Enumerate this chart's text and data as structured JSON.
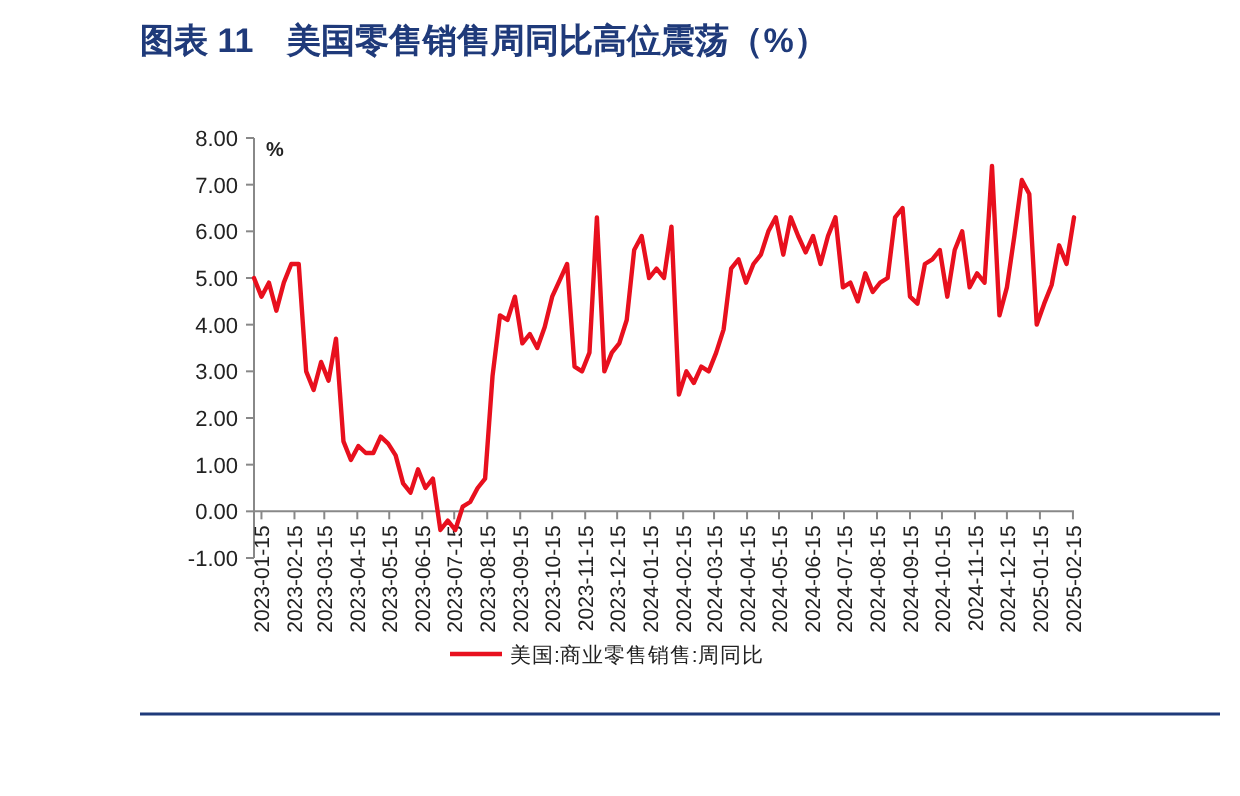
{
  "chart_data": {
    "type": "line",
    "title": "图表 11　美国零售销售周同比高位震荡（%）",
    "ylabel": "%",
    "x": [
      "2023-01-08",
      "2023-01-15",
      "2023-01-22",
      "2023-01-29",
      "2023-02-05",
      "2023-02-12",
      "2023-02-19",
      "2023-02-26",
      "2023-03-05",
      "2023-03-12",
      "2023-03-19",
      "2023-03-26",
      "2023-04-02",
      "2023-04-09",
      "2023-04-16",
      "2023-04-23",
      "2023-04-30",
      "2023-05-07",
      "2023-05-14",
      "2023-05-21",
      "2023-05-28",
      "2023-06-04",
      "2023-06-11",
      "2023-06-18",
      "2023-06-25",
      "2023-07-02",
      "2023-07-09",
      "2023-07-16",
      "2023-07-23",
      "2023-07-30",
      "2023-08-06",
      "2023-08-13",
      "2023-08-20",
      "2023-08-27",
      "2023-09-03",
      "2023-09-10",
      "2023-09-17",
      "2023-09-24",
      "2023-10-01",
      "2023-10-08",
      "2023-10-15",
      "2023-10-22",
      "2023-10-29",
      "2023-11-05",
      "2023-11-12",
      "2023-11-19",
      "2023-11-26",
      "2023-12-03",
      "2023-12-10",
      "2023-12-17",
      "2023-12-24",
      "2023-12-31",
      "2024-01-07",
      "2024-01-14",
      "2024-01-21",
      "2024-01-28",
      "2024-02-04",
      "2024-02-11",
      "2024-02-18",
      "2024-02-25",
      "2024-03-03",
      "2024-03-10",
      "2024-03-17",
      "2024-03-24",
      "2024-03-31",
      "2024-04-07",
      "2024-04-14",
      "2024-04-21",
      "2024-04-28",
      "2024-05-05",
      "2024-05-12",
      "2024-05-19",
      "2024-05-26",
      "2024-06-02",
      "2024-06-09",
      "2024-06-16",
      "2024-06-23",
      "2024-06-30",
      "2024-07-07",
      "2024-07-14",
      "2024-07-21",
      "2024-07-28",
      "2024-08-04",
      "2024-08-11",
      "2024-08-18",
      "2024-08-25",
      "2024-09-01",
      "2024-09-08",
      "2024-09-15",
      "2024-09-22",
      "2024-09-29",
      "2024-10-06",
      "2024-10-13",
      "2024-10-20",
      "2024-10-27",
      "2024-11-03",
      "2024-11-10",
      "2024-11-17",
      "2024-11-24",
      "2024-12-01",
      "2024-12-08",
      "2024-12-15",
      "2024-12-22",
      "2024-12-29",
      "2025-01-05",
      "2025-01-12",
      "2025-01-19",
      "2025-01-26",
      "2025-02-02",
      "2025-02-09",
      "2025-02-16"
    ],
    "series": [
      {
        "name": "美国:商业零售销售:周同比",
        "color": "#e8101e",
        "values": [
          5.0,
          4.6,
          4.9,
          4.3,
          4.9,
          5.3,
          5.3,
          3.0,
          2.6,
          3.2,
          2.8,
          3.7,
          1.5,
          1.1,
          1.4,
          1.25,
          1.25,
          1.6,
          1.45,
          1.2,
          0.6,
          0.4,
          0.9,
          0.5,
          0.7,
          -0.4,
          -0.2,
          -0.4,
          0.1,
          0.2,
          0.5,
          0.7,
          2.9,
          4.2,
          4.1,
          4.6,
          3.6,
          3.8,
          3.5,
          3.95,
          4.6,
          4.95,
          5.3,
          3.1,
          3.0,
          3.4,
          6.3,
          3.0,
          3.4,
          3.6,
          4.1,
          5.6,
          5.9,
          5.0,
          5.2,
          5.0,
          6.1,
          2.5,
          3.0,
          2.75,
          3.1,
          3.0,
          3.4,
          3.9,
          5.2,
          5.4,
          4.9,
          5.3,
          5.5,
          6.0,
          6.3,
          5.5,
          6.3,
          5.9,
          5.55,
          5.9,
          5.3,
          5.9,
          6.3,
          4.8,
          4.9,
          4.5,
          5.1,
          4.7,
          4.9,
          5.0,
          6.3,
          6.5,
          4.6,
          4.45,
          5.3,
          5.4,
          5.6,
          4.6,
          5.6,
          6.0,
          4.8,
          5.1,
          4.9,
          7.4,
          4.2,
          4.8,
          5.9,
          7.1,
          6.8,
          4.0,
          4.45,
          4.85,
          5.7,
          5.3,
          6.3
        ]
      }
    ],
    "xlim": [
      "2023-01-08",
      "2025-02-16"
    ],
    "xticks": [
      "2023-01-15",
      "2023-02-15",
      "2023-03-15",
      "2023-04-15",
      "2023-05-15",
      "2023-06-15",
      "2023-07-15",
      "2023-08-15",
      "2023-09-15",
      "2023-10-15",
      "2023-11-15",
      "2023-12-15",
      "2024-01-15",
      "2024-02-15",
      "2024-03-15",
      "2024-04-15",
      "2024-05-15",
      "2024-06-15",
      "2024-07-15",
      "2024-08-15",
      "2024-09-15",
      "2024-10-15",
      "2024-11-15",
      "2024-12-15",
      "2025-01-15",
      "2025-02-15"
    ],
    "ylim": [
      -1,
      8
    ],
    "yticks": [
      {
        "value": -1,
        "label": "-1.00"
      },
      {
        "value": 0,
        "label": "0.00"
      },
      {
        "value": 1,
        "label": "1.00"
      },
      {
        "value": 2,
        "label": "2.00"
      },
      {
        "value": 3,
        "label": "3.00"
      },
      {
        "value": 4,
        "label": "4.00"
      },
      {
        "value": 5,
        "label": "5.00"
      },
      {
        "value": 6,
        "label": "6.00"
      },
      {
        "value": 7,
        "label": "7.00"
      },
      {
        "value": 8,
        "label": "8.00"
      }
    ],
    "legend": "bottom",
    "grid": false
  }
}
